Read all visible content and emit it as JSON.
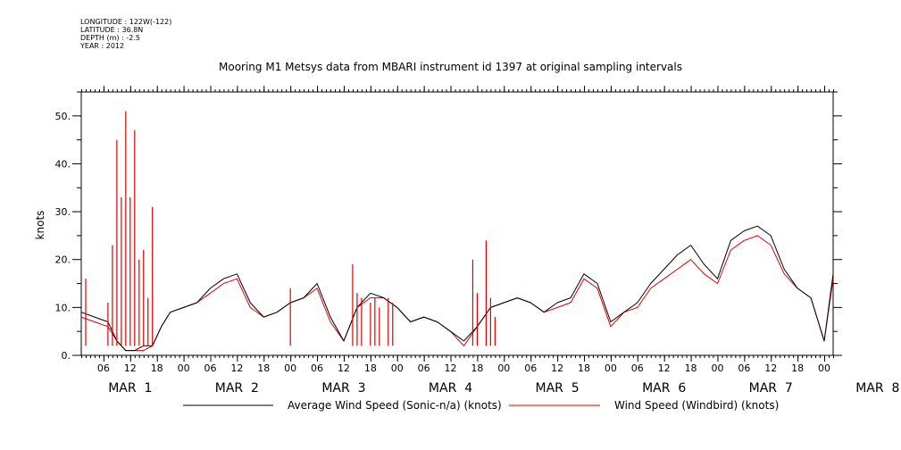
{
  "header": {
    "meta_lines": [
      "LONGITUDE : 122W(-122)",
      "LATITUDE : 36.8N",
      "DEPTH (m) : -2.5",
      "YEAR : 2012"
    ],
    "title": "Mooring M1 Metsys data from MBARI instrument id 1397 at original sampling intervals"
  },
  "chart_data": {
    "type": "line",
    "title": "Mooring M1 Metsys data from MBARI instrument id 1397 at original sampling intervals",
    "ylabel": "knots",
    "xlabel": "",
    "ylim": [
      0,
      55
    ],
    "xlim_hours": [
      1,
      170
    ],
    "grid": false,
    "legend_position": "bottom",
    "y_ticks": [
      0,
      10,
      20,
      30,
      40,
      50
    ],
    "y_tick_labels": [
      "0.",
      "10.",
      "20.",
      "30.",
      "40.",
      "50."
    ],
    "x_hour_labels": [
      "06",
      "12",
      "18",
      "00",
      "06",
      "12",
      "18",
      "00",
      "06",
      "12",
      "18",
      "00",
      "06",
      "12",
      "18",
      "00",
      "06",
      "12",
      "18",
      "00",
      "06",
      "12",
      "18",
      "00",
      "06",
      "12",
      "18",
      "00"
    ],
    "x_day_labels": [
      "MAR  1",
      "MAR  2",
      "MAR  3",
      "MAR  4",
      "MAR  5",
      "MAR  6",
      "MAR  7",
      "MAR  8"
    ],
    "x": [
      1,
      4,
      7,
      9,
      11,
      13,
      15,
      17,
      19,
      21,
      24,
      27,
      30,
      33,
      36,
      39,
      42,
      45,
      48,
      51,
      54,
      57,
      60,
      63,
      66,
      69,
      72,
      75,
      78,
      81,
      84,
      87,
      90,
      93,
      96,
      99,
      102,
      105,
      108,
      111,
      114,
      117,
      120,
      123,
      126,
      129,
      132,
      135,
      138,
      141,
      144,
      147,
      150,
      153,
      156,
      159,
      162,
      165,
      168,
      170
    ],
    "series": [
      {
        "name": "Average Wind Speed (Sonic-n/a) (knots)",
        "color": "#000000",
        "values": [
          9,
          8,
          7,
          3,
          1,
          1,
          2,
          2,
          6,
          9,
          10,
          11,
          14,
          16,
          17,
          11,
          8,
          9,
          11,
          12,
          15,
          8,
          3,
          10,
          13,
          12,
          10,
          7,
          8,
          7,
          5,
          3,
          6,
          10,
          11,
          12,
          11,
          9,
          11,
          12,
          17,
          15,
          7,
          9,
          11,
          15,
          18,
          21,
          23,
          19,
          16,
          24,
          26,
          27,
          25,
          18,
          14,
          12,
          3,
          17
        ]
      },
      {
        "name": "Wind Speed (Windbird) (knots)",
        "color": "#dd0000",
        "values": [
          8,
          7,
          6,
          3,
          1,
          1,
          1,
          2,
          6,
          9,
          10,
          11,
          13,
          15,
          16,
          10,
          8,
          9,
          11,
          12,
          14,
          7,
          3,
          10,
          12,
          12,
          10,
          7,
          8,
          7,
          5,
          2,
          6,
          10,
          11,
          12,
          11,
          9,
          10,
          11,
          16,
          14,
          6,
          9,
          10,
          14,
          16,
          18,
          20,
          17,
          15,
          22,
          24,
          25,
          23,
          17,
          14,
          12,
          3,
          16
        ]
      }
    ],
    "spikes": {
      "series": "Wind Speed (Windbird) (knots)",
      "x": [
        2,
        7,
        8,
        9,
        10,
        11,
        12,
        13,
        14,
        15,
        16,
        17,
        48,
        62,
        63,
        64,
        66,
        67,
        68,
        70,
        71,
        89,
        90,
        92,
        93,
        94
      ],
      "values": [
        16,
        11,
        23,
        45,
        33,
        51,
        33,
        47,
        20,
        22,
        12,
        31,
        14,
        19,
        13,
        12,
        11,
        12,
        10,
        12,
        11,
        20,
        13,
        24,
        12,
        8
      ]
    }
  },
  "legend": {
    "items": [
      {
        "label": "Average Wind Speed (Sonic-n/a) (knots)",
        "color": "#000000"
      },
      {
        "label": "Wind Speed (Windbird) (knots)",
        "color": "#dd0000"
      }
    ]
  }
}
